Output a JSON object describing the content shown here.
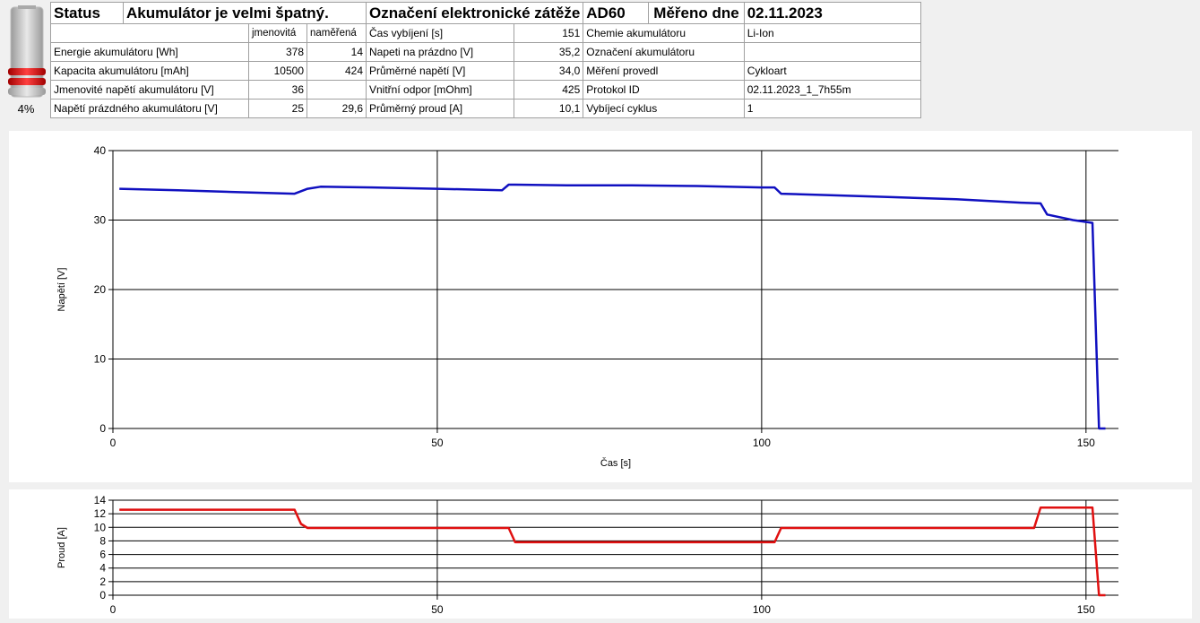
{
  "battery": {
    "percent_label": "4%",
    "level_fraction": 0.04
  },
  "header": {
    "status_label": "Status",
    "status_value": "Akumulátor je velmi špatný.",
    "load_label": "Označení elektronické zátěže",
    "load_value": "AD60",
    "date_label": "Měřeno dne",
    "date_value": "02.11.2023"
  },
  "table": {
    "col_nominal": "jmenovitá",
    "col_measured": "naměřená",
    "rows": [
      {
        "label": "Energie akumulátoru [Wh]",
        "nominal": "378",
        "measured": "14",
        "mid_label": "Čas vybíjení [s]",
        "mid_value": "151",
        "right_label": "Chemie akumulátoru",
        "right_value": "Li-Ion"
      },
      {
        "label": "Kapacita akumulátoru [mAh]",
        "nominal": "10500",
        "measured": "424",
        "mid_label": "Napeti na prázdno [V]",
        "mid_value": "35,2",
        "right_label": "Označení akumulátoru",
        "right_value": ""
      },
      {
        "label": "Jmenovité napětí akumulátoru [V]",
        "nominal": "36",
        "measured": "",
        "mid_label": "Průměrné napětí [V]",
        "mid_value": "34,0",
        "right_label": "Měření provedl",
        "right_value": "Cykloart"
      },
      {
        "label": "Napětí prázdného akumulátoru [V]",
        "nominal": "25",
        "measured": "29,6",
        "mid_label": "Vnitřní odpor [mOhm]",
        "mid_value": "425",
        "right_label": "Protokol ID",
        "right_value": "02.11.2023_1_7h55m"
      }
    ],
    "bottom_row": {
      "label": "Průměrný proud [A]",
      "value": "10,1",
      "right_label": "Vybíjecí cyklus",
      "right_value": "1"
    }
  },
  "chart_data": [
    {
      "type": "line",
      "xlabel": "Čas [s]",
      "ylabel": "Napětí [V]",
      "xlim": [
        0,
        155
      ],
      "ylim": [
        0,
        40
      ],
      "xticks": [
        "0",
        "50",
        "100",
        "150"
      ],
      "yticks": [
        "0",
        "10",
        "20",
        "30",
        "40"
      ],
      "grid": true,
      "color": "#1010c0",
      "x": [
        1,
        10,
        20,
        28,
        30,
        32,
        40,
        50,
        60,
        61,
        62,
        70,
        80,
        90,
        100,
        102,
        103,
        110,
        120,
        130,
        140,
        143,
        144,
        148,
        151,
        152,
        153
      ],
      "y": [
        34.5,
        34.3,
        34.0,
        33.8,
        34.5,
        34.8,
        34.7,
        34.5,
        34.3,
        35.1,
        35.1,
        35.0,
        35.0,
        34.9,
        34.7,
        34.7,
        33.8,
        33.6,
        33.3,
        33.0,
        32.5,
        32.4,
        30.8,
        30.0,
        29.6,
        0,
        0
      ]
    },
    {
      "type": "line",
      "xlabel": "",
      "ylabel": "Proud [A]",
      "xlim": [
        0,
        155
      ],
      "ylim": [
        0,
        14
      ],
      "xticks": [
        "0",
        "50",
        "100",
        "150"
      ],
      "yticks": [
        "0",
        "2",
        "4",
        "6",
        "8",
        "10",
        "12",
        "14"
      ],
      "grid": true,
      "color": "#e01010",
      "x": [
        1,
        28,
        29,
        30,
        40,
        50,
        61,
        62,
        70,
        80,
        90,
        100,
        102,
        103,
        120,
        142,
        143,
        151,
        152,
        153
      ],
      "y": [
        12.6,
        12.6,
        10.5,
        9.9,
        9.9,
        9.9,
        9.9,
        7.8,
        7.8,
        7.8,
        7.8,
        7.8,
        7.8,
        9.9,
        9.9,
        9.9,
        12.9,
        12.9,
        0,
        0
      ]
    }
  ]
}
